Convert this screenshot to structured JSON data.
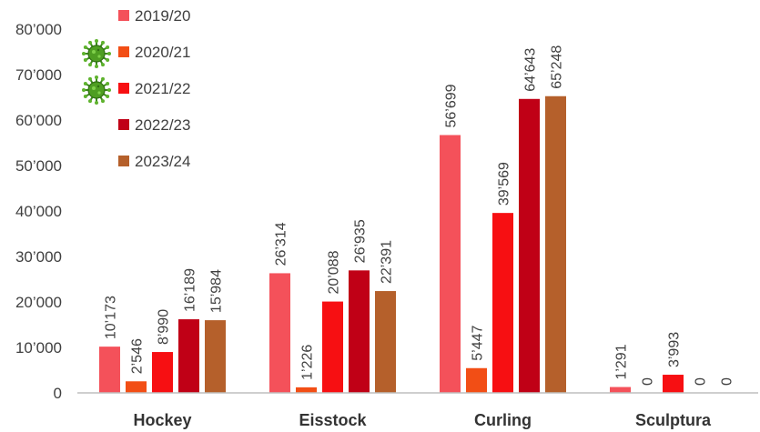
{
  "chart_data": {
    "type": "bar",
    "categories": [
      "Hockey",
      "Eisstock",
      "Curling",
      "Sculptura"
    ],
    "series": [
      {
        "name": "2019/20",
        "values": [
          10173,
          26314,
          56699,
          1291
        ],
        "labels": [
          "10’173",
          "26’314",
          "56’699",
          "1’291"
        ],
        "color": "#F4515A"
      },
      {
        "name": "2020/21",
        "values": [
          2546,
          1226,
          5447,
          0
        ],
        "labels": [
          "2’546",
          "1’226",
          "5’447",
          "0"
        ],
        "color": "#F24E15"
      },
      {
        "name": "2021/22",
        "values": [
          8990,
          20088,
          39569,
          3993
        ],
        "labels": [
          "8’990",
          "20’088",
          "39’569",
          "3’993"
        ],
        "color": "#F70F12"
      },
      {
        "name": "2022/23",
        "values": [
          16189,
          26935,
          64643,
          0
        ],
        "labels": [
          "16’189",
          "26’935",
          "64’643",
          "0"
        ],
        "color": "#C00016"
      },
      {
        "name": "2023/24",
        "values": [
          15984,
          22391,
          65248,
          0
        ],
        "labels": [
          "15’984",
          "22’391",
          "65’248",
          "0"
        ],
        "color": "#B5602B"
      }
    ],
    "yticks": [
      0,
      10000,
      20000,
      30000,
      40000,
      50000,
      60000,
      70000,
      80000
    ],
    "ytick_labels": [
      "0",
      "10’000",
      "20’000",
      "30’000",
      "40’000",
      "50’000",
      "60’000",
      "70’000",
      "80’000"
    ],
    "ylim": [
      0,
      80000
    ],
    "grid": false,
    "legend_position": "top-left",
    "legend_icons": [
      "",
      "virus-icon",
      "virus-icon",
      "",
      ""
    ]
  }
}
